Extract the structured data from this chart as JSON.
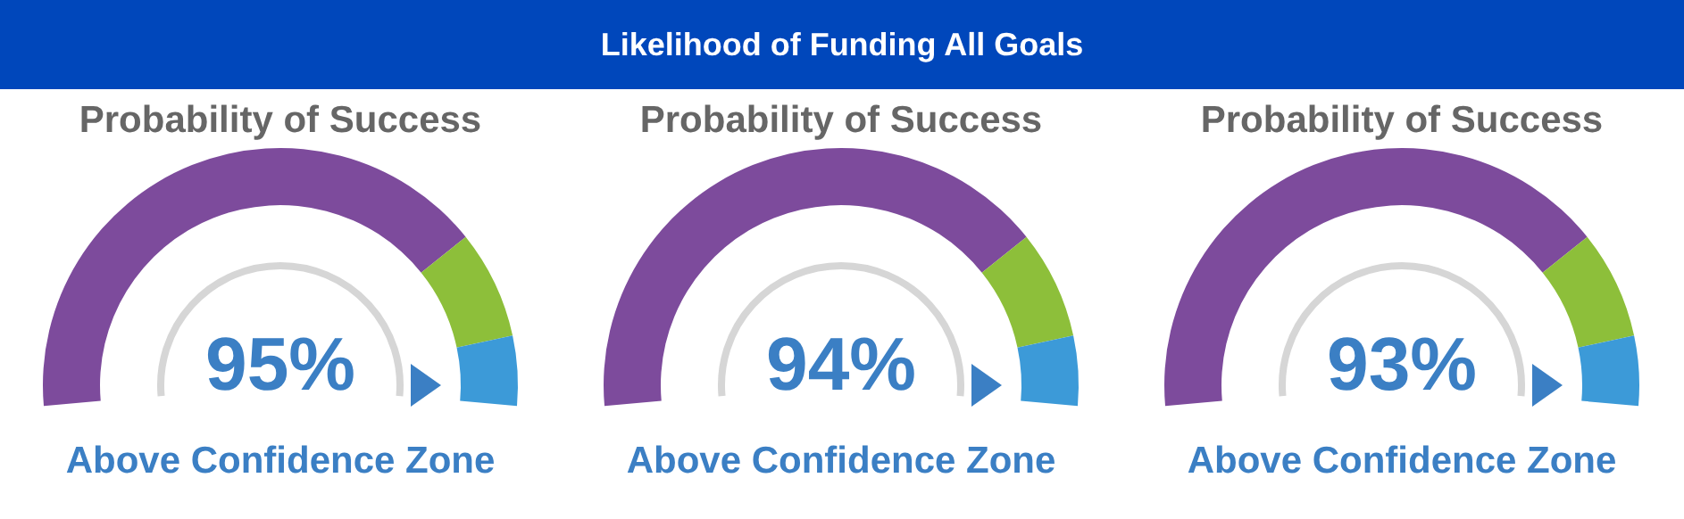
{
  "chart_data": [
    {
      "type": "other",
      "title": "Likelihood of Funding All Goals"
    },
    {
      "type": "donut",
      "title": "Probability of Success",
      "categories": [
        null,
        null,
        null
      ],
      "values": [
        77,
        14,
        9
      ],
      "colors": [
        "#7d4b9c",
        "#8dbf3a",
        "#3c9ad8"
      ],
      "annotations": [
        "95%",
        "Above Confidence Zone"
      ]
    },
    {
      "type": "donut",
      "title": "Probability of Success",
      "categories": [
        null,
        null,
        null
      ],
      "values": [
        77,
        14,
        9
      ],
      "colors": [
        "#7d4b9c",
        "#8dbf3a",
        "#3c9ad8"
      ],
      "annotations": [
        "94%",
        "Above Confidence Zone"
      ]
    },
    {
      "type": "donut",
      "title": "Probability of Success",
      "categories": [
        null,
        null,
        null
      ],
      "values": [
        77,
        14,
        9
      ],
      "colors": [
        "#7d4b9c",
        "#8dbf3a",
        "#3c9ad8"
      ],
      "annotations": [
        "93%",
        "Above Confidence Zone"
      ]
    }
  ]
}
